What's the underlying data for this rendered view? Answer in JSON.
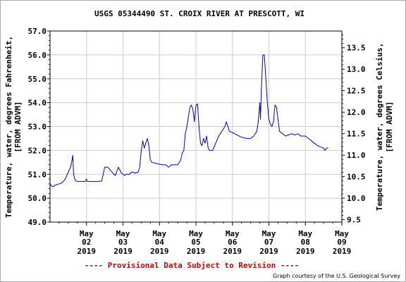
{
  "chart_data": {
    "type": "line",
    "title": "USGS 05344490 ST. CROIX RIVER AT PRESCOTT, WI",
    "ylabel": "Temperature, water, degrees Fahrenheit,",
    "ylabel_sub": "[FROM ADVM]",
    "y2label": "Temperature, water, degrees Celsius,",
    "y2label_sub": "[FROM ADVM]",
    "ylim": [
      49.0,
      57.0
    ],
    "y_ticks": [
      "49.0",
      "50.0",
      "51.0",
      "52.0",
      "53.0",
      "54.0",
      "55.0",
      "56.0",
      "57.0"
    ],
    "y2lim": [
      9.444,
      13.889
    ],
    "y2_ticks": [
      "9.5",
      "10.0",
      "10.5",
      "11.0",
      "11.5",
      "12.0",
      "12.5",
      "13.0",
      "13.5"
    ],
    "xlim": [
      "2019-05-01",
      "2019-05-09"
    ],
    "x_ticks": [
      {
        "date": "2019-05-02",
        "month": "May",
        "day": "02",
        "year": "2019"
      },
      {
        "date": "2019-05-03",
        "month": "May",
        "day": "03",
        "year": "2019"
      },
      {
        "date": "2019-05-04",
        "month": "May",
        "day": "04",
        "year": "2019"
      },
      {
        "date": "2019-05-05",
        "month": "May",
        "day": "05",
        "year": "2019"
      },
      {
        "date": "2019-05-06",
        "month": "May",
        "day": "06",
        "year": "2019"
      },
      {
        "date": "2019-05-07",
        "month": "May",
        "day": "07",
        "year": "2019"
      },
      {
        "date": "2019-05-08",
        "month": "May",
        "day": "08",
        "year": "2019"
      },
      {
        "date": "2019-05-09",
        "month": "May",
        "day": "09",
        "year": "2019"
      }
    ],
    "grid": true,
    "line_color": "#0000cc",
    "series": [
      {
        "points": [
          [
            "2019-05-01 00:00",
            50.6
          ],
          [
            "2019-05-01 01:00",
            50.5
          ],
          [
            "2019-05-01 02:30",
            50.5
          ],
          [
            "2019-05-01 03:30",
            50.55
          ],
          [
            "2019-05-01 06:00",
            50.6
          ],
          [
            "2019-05-01 08:00",
            50.65
          ],
          [
            "2019-05-01 10:00",
            50.8
          ],
          [
            "2019-05-01 12:00",
            51.1
          ],
          [
            "2019-05-01 13:30",
            51.3
          ],
          [
            "2019-05-01 14:30",
            51.6
          ],
          [
            "2019-05-01 15:00",
            51.8
          ],
          [
            "2019-05-01 15:30",
            51.0
          ],
          [
            "2019-05-01 16:30",
            50.75
          ],
          [
            "2019-05-01 18:00",
            50.7
          ],
          [
            "2019-05-01 20:00",
            50.7
          ],
          [
            "2019-05-01 23:00",
            50.7
          ],
          [
            "2019-05-02 00:00",
            50.8
          ],
          [
            "2019-05-02 00:30",
            50.7
          ],
          [
            "2019-05-02 04:00",
            50.7
          ],
          [
            "2019-05-02 08:00",
            50.7
          ],
          [
            "2019-05-02 10:00",
            50.72
          ],
          [
            "2019-05-02 12:00",
            51.3
          ],
          [
            "2019-05-02 14:00",
            51.3
          ],
          [
            "2019-05-02 16:00",
            51.15
          ],
          [
            "2019-05-02 18:00",
            51.0
          ],
          [
            "2019-05-02 19:00",
            50.95
          ],
          [
            "2019-05-02 21:00",
            51.3
          ],
          [
            "2019-05-02 23:00",
            51.05
          ],
          [
            "2019-05-03 01:00",
            50.95
          ],
          [
            "2019-05-03 02:00",
            51.0
          ],
          [
            "2019-05-03 04:00",
            51.0
          ],
          [
            "2019-05-03 06:00",
            51.1
          ],
          [
            "2019-05-03 08:00",
            51.05
          ],
          [
            "2019-05-03 10:00",
            51.1
          ],
          [
            "2019-05-03 11:00",
            51.3
          ],
          [
            "2019-05-03 12:00",
            52.0
          ],
          [
            "2019-05-03 13:00",
            52.4
          ],
          [
            "2019-05-03 14:00",
            52.1
          ],
          [
            "2019-05-03 15:00",
            52.3
          ],
          [
            "2019-05-03 16:00",
            52.5
          ],
          [
            "2019-05-03 17:00",
            52.2
          ],
          [
            "2019-05-03 18:00",
            51.6
          ],
          [
            "2019-05-03 19:00",
            51.5
          ],
          [
            "2019-05-03 22:00",
            51.45
          ],
          [
            "2019-05-04 02:00",
            51.4
          ],
          [
            "2019-05-04 04:00",
            51.4
          ],
          [
            "2019-05-04 06:00",
            51.3
          ],
          [
            "2019-05-04 08:00",
            51.4
          ],
          [
            "2019-05-04 12:00",
            51.4
          ],
          [
            "2019-05-04 14:00",
            51.6
          ],
          [
            "2019-05-04 15:00",
            51.9
          ],
          [
            "2019-05-04 16:00",
            52.0
          ],
          [
            "2019-05-04 17:00",
            52.7
          ],
          [
            "2019-05-04 18:00",
            53.0
          ],
          [
            "2019-05-04 19:00",
            53.4
          ],
          [
            "2019-05-04 20:00",
            53.8
          ],
          [
            "2019-05-04 21:00",
            53.9
          ],
          [
            "2019-05-04 22:00",
            53.7
          ],
          [
            "2019-05-04 23:00",
            53.2
          ],
          [
            "2019-05-05 00:00",
            53.9
          ],
          [
            "2019-05-05 01:00",
            53.95
          ],
          [
            "2019-05-05 02:00",
            53.0
          ],
          [
            "2019-05-05 03:00",
            52.3
          ],
          [
            "2019-05-05 04:00",
            52.2
          ],
          [
            "2019-05-05 05:00",
            52.5
          ],
          [
            "2019-05-05 06:00",
            52.3
          ],
          [
            "2019-05-05 07:00",
            52.6
          ],
          [
            "2019-05-05 08:00",
            52.1
          ],
          [
            "2019-05-05 09:00",
            52.0
          ],
          [
            "2019-05-05 11:00",
            52.0
          ],
          [
            "2019-05-05 13:00",
            52.3
          ],
          [
            "2019-05-05 15:00",
            52.6
          ],
          [
            "2019-05-05 17:00",
            52.8
          ],
          [
            "2019-05-05 19:00",
            53.0
          ],
          [
            "2019-05-05 20:00",
            53.2
          ],
          [
            "2019-05-05 21:00",
            53.0
          ],
          [
            "2019-05-05 22:00",
            52.8
          ],
          [
            "2019-05-06 00:00",
            52.75
          ],
          [
            "2019-05-06 03:00",
            52.65
          ],
          [
            "2019-05-06 06:00",
            52.55
          ],
          [
            "2019-05-06 09:00",
            52.5
          ],
          [
            "2019-05-06 12:00",
            52.5
          ],
          [
            "2019-05-06 14:00",
            52.6
          ],
          [
            "2019-05-06 16:00",
            52.8
          ],
          [
            "2019-05-06 17:00",
            53.2
          ],
          [
            "2019-05-06 18:00",
            54.0
          ],
          [
            "2019-05-06 18:30",
            53.3
          ],
          [
            "2019-05-06 19:00",
            54.5
          ],
          [
            "2019-05-06 20:00",
            56.0
          ],
          [
            "2019-05-06 21:00",
            56.0
          ],
          [
            "2019-05-06 22:00",
            55.0
          ],
          [
            "2019-05-06 23:00",
            54.0
          ],
          [
            "2019-05-07 00:00",
            53.3
          ],
          [
            "2019-05-07 01:00",
            53.1
          ],
          [
            "2019-05-07 02:00",
            53.0
          ],
          [
            "2019-05-07 03:00",
            53.2
          ],
          [
            "2019-05-07 04:00",
            53.9
          ],
          [
            "2019-05-07 05:00",
            53.8
          ],
          [
            "2019-05-07 06:00",
            53.3
          ],
          [
            "2019-05-07 07:00",
            52.8
          ],
          [
            "2019-05-07 09:00",
            52.7
          ],
          [
            "2019-05-07 11:00",
            52.6
          ],
          [
            "2019-05-07 13:00",
            52.65
          ],
          [
            "2019-05-07 15:00",
            52.7
          ],
          [
            "2019-05-07 17:00",
            52.65
          ],
          [
            "2019-05-07 19:00",
            52.7
          ],
          [
            "2019-05-07 21:00",
            52.6
          ],
          [
            "2019-05-08 00:00",
            52.6
          ],
          [
            "2019-05-08 02:00",
            52.5
          ],
          [
            "2019-05-08 04:00",
            52.4
          ],
          [
            "2019-05-08 06:00",
            52.3
          ],
          [
            "2019-05-08 08:00",
            52.2
          ],
          [
            "2019-05-08 10:00",
            52.15
          ],
          [
            "2019-05-08 12:00",
            52.1
          ],
          [
            "2019-05-08 13:00",
            52.0
          ],
          [
            "2019-05-08 14:00",
            52.1
          ],
          [
            "2019-05-08 15:00",
            52.1
          ]
        ]
      }
    ],
    "footer_notice": "---- Provisional Data Subject to Revision ----",
    "credit": "Graph courtesy of the U.S. Geological Survey"
  }
}
